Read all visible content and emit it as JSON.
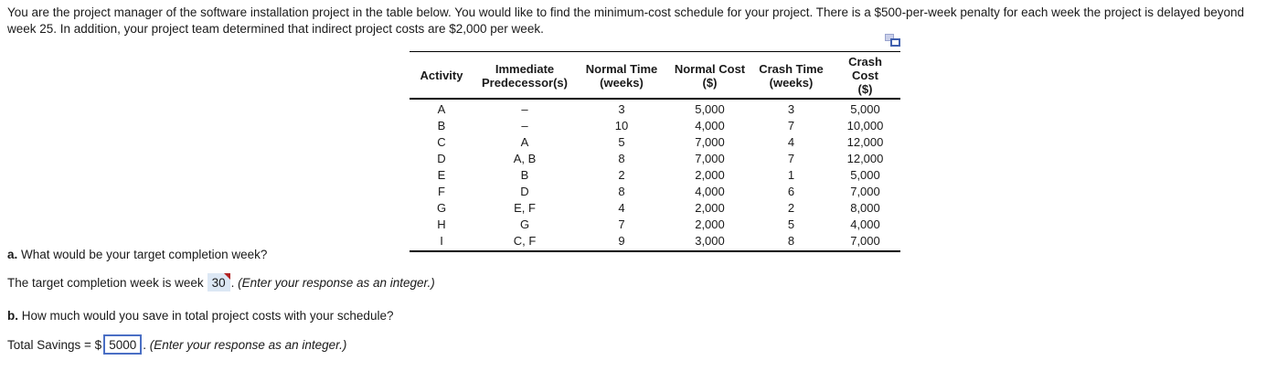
{
  "problem": {
    "text": "You are the project manager of the software installation project in the table below. You would like to find the minimum-cost schedule for your project. There is a $500-per-week penalty for each week the project is delayed beyond week 25. In addition, your project team determined that indirect project costs are $2,000 per week."
  },
  "table": {
    "headers": [
      {
        "line1": "Activity",
        "line2": ""
      },
      {
        "line1": "Immediate",
        "line2": "Predecessor(s)"
      },
      {
        "line1": "Normal Time",
        "line2": "(weeks)"
      },
      {
        "line1": "Normal Cost",
        "line2": "($)"
      },
      {
        "line1": "Crash Time",
        "line2": "(weeks)"
      },
      {
        "line1": "Crash Cost",
        "line2": "($)"
      }
    ],
    "rows": [
      {
        "activity": "A",
        "predecessors": "–",
        "normal_time": "3",
        "normal_cost": "5,000",
        "crash_time": "3",
        "crash_cost": "5,000"
      },
      {
        "activity": "B",
        "predecessors": "–",
        "normal_time": "10",
        "normal_cost": "4,000",
        "crash_time": "7",
        "crash_cost": "10,000"
      },
      {
        "activity": "C",
        "predecessors": "A",
        "normal_time": "5",
        "normal_cost": "7,000",
        "crash_time": "4",
        "crash_cost": "12,000"
      },
      {
        "activity": "D",
        "predecessors": "A, B",
        "normal_time": "8",
        "normal_cost": "7,000",
        "crash_time": "7",
        "crash_cost": "12,000"
      },
      {
        "activity": "E",
        "predecessors": "B",
        "normal_time": "2",
        "normal_cost": "2,000",
        "crash_time": "1",
        "crash_cost": "5,000"
      },
      {
        "activity": "F",
        "predecessors": "D",
        "normal_time": "8",
        "normal_cost": "4,000",
        "crash_time": "6",
        "crash_cost": "7,000"
      },
      {
        "activity": "G",
        "predecessors": "E, F",
        "normal_time": "4",
        "normal_cost": "2,000",
        "crash_time": "2",
        "crash_cost": "8,000"
      },
      {
        "activity": "H",
        "predecessors": "G",
        "normal_time": "7",
        "normal_cost": "2,000",
        "crash_time": "5",
        "crash_cost": "4,000"
      },
      {
        "activity": "I",
        "predecessors": "C, F",
        "normal_time": "9",
        "normal_cost": "3,000",
        "crash_time": "8",
        "crash_cost": "7,000"
      }
    ]
  },
  "questions": {
    "a": {
      "label": "a.",
      "text": "What would be your target completion week?",
      "answer_prefix": "The target completion week is week",
      "answer_value": "30",
      "answer_suffix": ".",
      "note": "(Enter your response as an integer.)"
    },
    "b": {
      "label": "b.",
      "text": "How much would you save in total project costs with your schedule?",
      "answer_prefix": "Total Savings = $",
      "answer_value": "5000",
      "answer_suffix": ".",
      "note": "(Enter your response as an integer.)"
    }
  },
  "colors": {
    "answer_box_bg": "#dce7f4",
    "flag_red": "#b22222",
    "input_border_blue": "#4a6fc4",
    "icon_back_fill": "#c9cfe9",
    "icon_back_border": "#9aa4cf",
    "icon_front_border": "#3f5fae"
  }
}
